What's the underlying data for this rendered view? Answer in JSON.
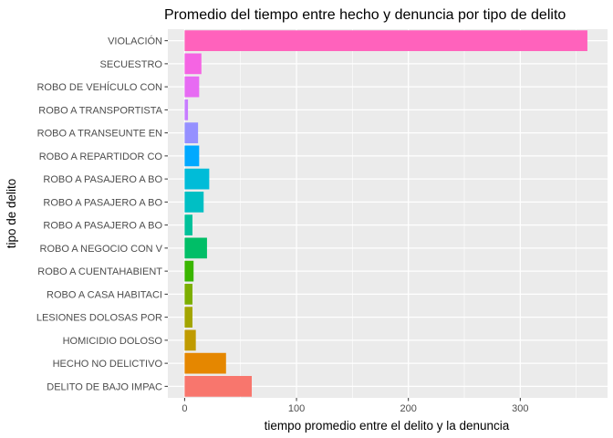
{
  "chart_data": {
    "type": "bar",
    "orientation": "horizontal",
    "title": "Promedio del tiempo entre hecho y denuncia por tipo de delito",
    "xlabel": "tiempo promedio entre el delito y la denuncia",
    "ylabel": "tipo de delito",
    "xlim": [
      -15,
      378
    ],
    "x_ticks": [
      0,
      100,
      200,
      300
    ],
    "grid": true,
    "legend": "none",
    "categories": [
      "VIOLACIÓN",
      "SECUESTRO",
      "ROBO DE VEHÍCULO CON",
      "ROBO A TRANSPORTISTA",
      "ROBO A TRANSEUNTE EN",
      "ROBO A REPARTIDOR CO",
      "ROBO A PASAJERO A BO",
      "ROBO A PASAJERO A BO",
      "ROBO A PASAJERO A BO",
      "ROBO A NEGOCIO CON V",
      "ROBO A CUENTAHABIENT",
      "ROBO A CASA HABITACI",
      "LESIONES DOLOSAS POR",
      "HOMICIDIO DOLOSO",
      "HECHO NO DELICTIVO",
      "DELITO DE BAJO IMPAC"
    ],
    "values": [
      360,
      15,
      13,
      3,
      12,
      13,
      22,
      17,
      7,
      20,
      8,
      7,
      7,
      10,
      37,
      60
    ],
    "colors": [
      "#FF62BC",
      "#F564E3",
      "#E76BF3",
      "#C77CFF",
      "#9590FF",
      "#00A9FF",
      "#00BCD8",
      "#00BFC4",
      "#00C19A",
      "#00BE67",
      "#39B600",
      "#7CAE00",
      "#A3A500",
      "#C09B00",
      "#E58700",
      "#F8766D"
    ],
    "panel_background": "#EBEBEB",
    "grid_color": "#FFFFFF"
  }
}
